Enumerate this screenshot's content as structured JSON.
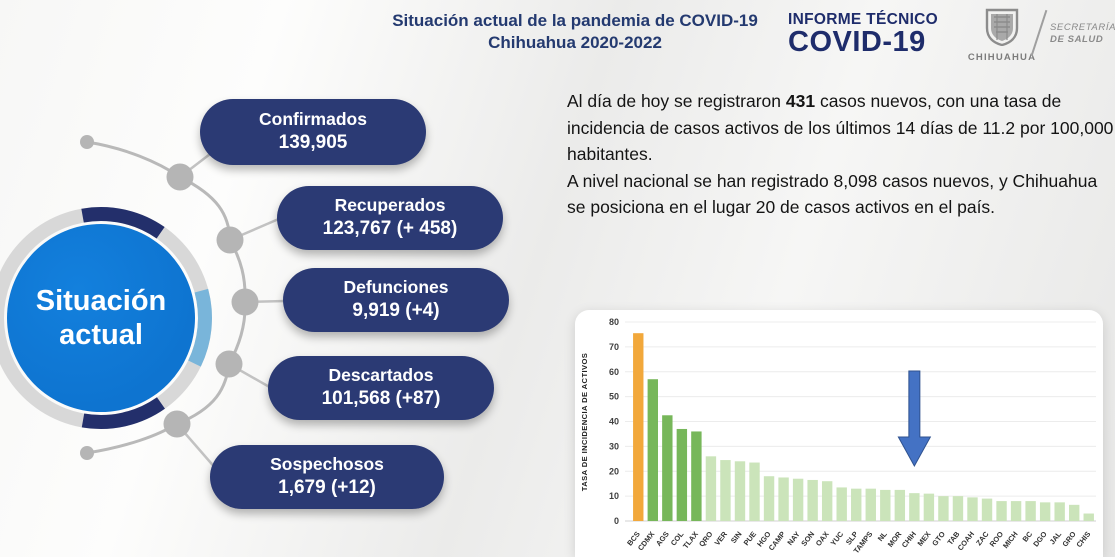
{
  "header": {
    "title_line1": "Situación actual de la pandemia de COVID-19",
    "title_line2": "Chihuahua 2020-2022",
    "report_label_line1": "INFORME TÉCNICO",
    "report_label_line2": "COVID-19",
    "logo": {
      "state": "CHIHUAHUA",
      "org_line1": "SECRETARÍA",
      "org_line2": "DE SALUD"
    }
  },
  "hub": {
    "label_line1": "Situación",
    "label_line2": "actual"
  },
  "stats": [
    {
      "label": "Confirmados",
      "value": "139,905"
    },
    {
      "label": "Recuperados",
      "value": "123,767 (+ 458)"
    },
    {
      "label": "Defunciones",
      "value": "9,919 (+4)"
    },
    {
      "label": "Descartados",
      "value": "101,568 (+87)"
    },
    {
      "label": "Sospechosos",
      "value": "1,679 (+12)"
    }
  ],
  "summary": {
    "p1_before": "Al día de hoy se registraron ",
    "p1_bold": "431",
    "p1_after": " casos nuevos, con una tasa de incidencia de casos activos de los últimos 14 días de 11.2 por 100,000 habitantes.",
    "p2": "A nivel nacional se han registrado 8,098 casos nuevos, y Chihuahua se posiciona en el lugar 20 de casos activos en el país."
  },
  "chart_data": {
    "type": "bar",
    "title": "",
    "xlabel": "",
    "ylabel": "TASA DE INCIDENCIA DE ACTIVOS",
    "ylim": [
      0,
      80
    ],
    "ytick_step": 10,
    "grid": true,
    "legend": false,
    "categories": [
      "BCS",
      "CDMX",
      "AGS",
      "COL",
      "TLAX",
      "QRO",
      "VER",
      "SIN",
      "PUE",
      "HGO",
      "CAMP",
      "NAY",
      "SON",
      "OAX",
      "YUC",
      "SLP",
      "TAMPS",
      "NL",
      "MOR",
      "CHIH",
      "MEX",
      "GTO",
      "TAB",
      "COAH",
      "ZAC",
      "ROO",
      "MICH",
      "BC",
      "DGO",
      "JAL",
      "GRO",
      "CHIS"
    ],
    "values": [
      75.5,
      57,
      42.5,
      37,
      36,
      26,
      24.5,
      24,
      23.5,
      18,
      17.5,
      17,
      16.5,
      16,
      13.5,
      13,
      13,
      12.5,
      12.5,
      11.2,
      11,
      10,
      10,
      9.5,
      9,
      8,
      8,
      8,
      7.5,
      7.5,
      6.5,
      3
    ],
    "bar_colors": [
      "#F2A83B",
      "#77B75A",
      "#77B75A",
      "#77B75A",
      "#77B75A",
      "#CBE4BA",
      "#CBE4BA",
      "#CBE4BA",
      "#CBE4BA",
      "#CBE4BA",
      "#CBE4BA",
      "#CBE4BA",
      "#CBE4BA",
      "#CBE4BA",
      "#CBE4BA",
      "#CBE4BA",
      "#CBE4BA",
      "#CBE4BA",
      "#CBE4BA",
      "#CBE4BA",
      "#CBE4BA",
      "#CBE4BA",
      "#CBE4BA",
      "#CBE4BA",
      "#CBE4BA",
      "#CBE4BA",
      "#CBE4BA",
      "#CBE4BA",
      "#CBE4BA",
      "#CBE4BA",
      "#CBE4BA",
      "#CBE4BA"
    ],
    "arrow": {
      "points_to": "CHIH",
      "fill": "#4472C4",
      "stroke": "#2F528F"
    }
  },
  "colors": {
    "title_navy": "#243A70",
    "brand_navy": "#1E2C6B",
    "pill_navy": "#2B3A74",
    "hub_blue": "#0E76D4",
    "ring_navy": "#232F6B",
    "ring_light_blue": "#79B5DA",
    "ring_gray": "#D8D8D8",
    "connector_gray": "#B9B9B9",
    "bar_highlight": "#F2A83B",
    "bar_top_group": "#77B75A",
    "bar_default": "#CBE4BA"
  }
}
